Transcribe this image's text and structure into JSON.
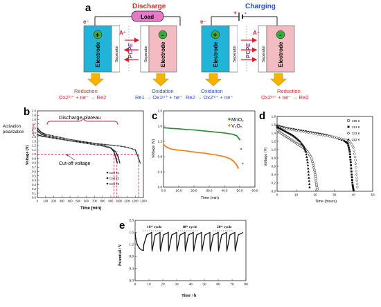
{
  "panels": {
    "a": {
      "letter": "a",
      "discharge": {
        "title": "Discharge",
        "load_label": "Load",
        "electron_label": "e⁻",
        "ion_label": "A⁺",
        "electrode_label": "Electrode",
        "separator_label": "Separator",
        "membrane_label": "PCPE",
        "plus_sign": "+",
        "minus_sign": "-",
        "left_reaction_title": "Reduction",
        "left_reaction": "Ox2ᵐ⁺ + ne⁻ → Re2",
        "right_reaction_title": "Oxidation",
        "right_reaction": "Re1 → Ox1ᵐ⁺ + ne⁻"
      },
      "charging": {
        "title": "Charging",
        "electron_label": "e⁻",
        "ion_label": "A⁺",
        "electrode_label": "Electrode",
        "separator_label": "Separator",
        "membrane_label": "PCPE",
        "plus_sign": "+",
        "minus_sign": "-",
        "battery_plus": "+",
        "battery_minus": "-",
        "left_reaction_title": "Oxidation",
        "left_reaction": "Re2 → Ox2ᵐ⁺ + ne⁻",
        "right_reaction_title": "Reduction",
        "right_reaction": "Ox2ᵐ⁺ + ne⁻ → Re2"
      },
      "colors": {
        "electrode_left": "#22b4d8",
        "electrode_right": "#f2bcc2",
        "discharge_title": "#e02828",
        "charging_title": "#2a52c8",
        "reduction": "#e02828",
        "oxidation": "#2a52c8",
        "arrow_fill": "#f2b400",
        "sign_circle": "#3aa83a"
      }
    },
    "b": {
      "letter": "b",
      "ylabel": "Voltage (V)",
      "xlabel": "Time (min)",
      "annotation_activation": "Activation\npolarization",
      "annotation_plateau": "Discharge plateau",
      "annotation_cutoff": "Cut-off voltage",
      "legend": [
        "Cell #1",
        "Cell #2",
        "Cell #3"
      ],
      "yticks": [
        "0.0",
        "0.1",
        "0.2",
        "0.3",
        "0.4",
        "0.5",
        "0.6",
        "0.7",
        "0.8",
        "0.9",
        "1.0",
        "1.1",
        "1.2",
        "1.3",
        "1.4",
        "1.5",
        "1.6",
        "1.7",
        "1.8",
        "1.9",
        "2.0"
      ],
      "xticks": [
        "0",
        "100",
        "200",
        "300",
        "400",
        "500",
        "600",
        "700",
        "800",
        "900",
        "1000",
        "1100",
        "1200",
        "1300"
      ]
    },
    "c": {
      "letter": "c",
      "ylabel": "Voltage (V)",
      "xlabel": "Time (min)",
      "yticks": [
        "0.0",
        "0.4",
        "0.8",
        "1.2",
        "1.6",
        "2.0"
      ],
      "xticks": [
        "0.0",
        "10.0",
        "20.0",
        "30.0",
        "40.0",
        "50.0",
        "60.0"
      ],
      "legend": [
        "MnO₂",
        "V₂O₅"
      ],
      "colors": {
        "mno2": "#2e8b3a",
        "v2o5": "#f07f1a"
      }
    },
    "d": {
      "letter": "d",
      "ylabel": "Voltage (V)",
      "xlabel": "Time (hours)",
      "yticks": [
        "0.0",
        "0.2",
        "0.4",
        "0.6",
        "0.8",
        "1.0",
        "1.2",
        "1.4",
        "1.6",
        "1.8"
      ],
      "xticks": [
        "0",
        "10",
        "20",
        "30",
        "40",
        "50"
      ],
      "legend": [
        "298 K",
        "313 K",
        "333 K",
        "353 K"
      ]
    },
    "e": {
      "letter": "e",
      "ylabel": "Potential / V",
      "xlabel": "Time / h",
      "yticks": [
        "0.0",
        "0.4",
        "0.8",
        "1.2",
        "1.6",
        "2.0"
      ],
      "xticks": [
        "0",
        "10",
        "20",
        "30",
        "40",
        "50",
        "60",
        "70",
        "80"
      ],
      "cycle_labels": [
        "16ᵗʰ cycle",
        "18ᵗʰ cycle",
        "20ᵗʰ cycle"
      ]
    }
  },
  "chart_data": [
    {
      "panel": "b",
      "type": "scatter",
      "xlabel": "Time (min)",
      "ylabel": "Voltage (V)",
      "xlim": [
        0,
        1300
      ],
      "ylim": [
        0.0,
        2.0
      ],
      "series": [
        {
          "name": "Cell #1",
          "x": [
            0,
            50,
            100,
            200,
            300,
            400,
            500,
            600,
            700,
            800,
            900,
            940,
            960,
            980
          ],
          "y": [
            1.6,
            1.5,
            1.46,
            1.42,
            1.38,
            1.34,
            1.31,
            1.28,
            1.25,
            1.21,
            1.15,
            1.05,
            0.92,
            0.8
          ]
        },
        {
          "name": "Cell #2",
          "x": [
            0,
            50,
            100,
            200,
            300,
            400,
            500,
            600,
            700,
            800,
            900,
            960,
            990,
            1010
          ],
          "y": [
            1.55,
            1.46,
            1.43,
            1.39,
            1.35,
            1.31,
            1.28,
            1.25,
            1.22,
            1.19,
            1.14,
            1.06,
            0.94,
            0.8
          ]
        },
        {
          "name": "Cell #3",
          "x": [
            0,
            50,
            100,
            200,
            300,
            400,
            500,
            600,
            700,
            800,
            900,
            1000,
            1100,
            1200,
            1230,
            1260
          ],
          "y": [
            1.45,
            1.42,
            1.4,
            1.37,
            1.34,
            1.31,
            1.29,
            1.27,
            1.25,
            1.23,
            1.21,
            1.19,
            1.16,
            1.1,
            0.96,
            0.8
          ]
        }
      ],
      "reference_lines": {
        "cutoff_voltage": 1.0
      }
    },
    {
      "panel": "c",
      "type": "line",
      "xlabel": "Time (min)",
      "ylabel": "Voltage (V)",
      "xlim": [
        0,
        60
      ],
      "ylim": [
        0.0,
        2.0
      ],
      "series": [
        {
          "name": "MnO₂",
          "x": [
            0,
            5,
            10,
            15,
            20,
            25,
            30,
            35,
            40,
            45,
            48,
            50,
            51,
            52
          ],
          "y": [
            1.56,
            1.54,
            1.53,
            1.51,
            1.5,
            1.48,
            1.46,
            1.44,
            1.42,
            1.39,
            1.35,
            1.25,
            1.0,
            0.62
          ]
        },
        {
          "name": "V₂O₅",
          "x": [
            0,
            2,
            5,
            10,
            15,
            20,
            25,
            30,
            35,
            40,
            44,
            46,
            48,
            49
          ],
          "y": [
            1.12,
            1.05,
            1.0,
            0.97,
            0.95,
            0.92,
            0.9,
            0.87,
            0.84,
            0.8,
            0.74,
            0.68,
            0.58,
            0.5
          ]
        }
      ]
    },
    {
      "panel": "d",
      "type": "scatter",
      "xlabel": "Time (hours)",
      "ylabel": "Voltage (V)",
      "xlim": [
        0,
        50
      ],
      "ylim": [
        0.0,
        1.8
      ],
      "series": [
        {
          "name": "298 K",
          "x": [
            0,
            2,
            4,
            6,
            8,
            10,
            12,
            14,
            16,
            18,
            19,
            20,
            20.5,
            21
          ],
          "y": [
            1.48,
            1.4,
            1.34,
            1.28,
            1.22,
            1.16,
            1.1,
            1.04,
            0.95,
            0.8,
            0.62,
            0.4,
            0.2,
            0.05
          ]
        },
        {
          "name": "313 K",
          "x": [
            0,
            5,
            10,
            15,
            20,
            25,
            30,
            35,
            37,
            38,
            38.5,
            39,
            39.5,
            40
          ],
          "y": [
            1.58,
            1.52,
            1.48,
            1.44,
            1.4,
            1.36,
            1.3,
            1.22,
            1.15,
            0.95,
            0.7,
            0.4,
            0.15,
            0.02
          ]
        },
        {
          "name": "333 K",
          "x": [
            0,
            5,
            10,
            15,
            20,
            25,
            30,
            35,
            38,
            40,
            41,
            41.5,
            42
          ],
          "y": [
            1.55,
            1.5,
            1.46,
            1.42,
            1.38,
            1.34,
            1.3,
            1.25,
            1.2,
            1.05,
            0.75,
            0.4,
            0.1
          ]
        },
        {
          "name": "353 K",
          "x": [
            0,
            2,
            4,
            6,
            8,
            10,
            12,
            14,
            15,
            16,
            16.5,
            17
          ],
          "y": [
            1.55,
            1.5,
            1.45,
            1.4,
            1.35,
            1.28,
            1.2,
            1.08,
            0.95,
            0.7,
            0.4,
            0.1
          ]
        }
      ]
    },
    {
      "panel": "e",
      "type": "line",
      "xlabel": "Time / h",
      "ylabel": "Potential / V",
      "xlim": [
        0,
        80
      ],
      "ylim": [
        0.0,
        2.0
      ],
      "series": [
        {
          "name": "",
          "x": [
            0,
            6,
            6.3,
            8.5,
            12,
            12.3,
            14.5,
            18,
            18.3,
            20.5,
            24,
            24.3,
            26.5,
            30,
            30.3,
            32.5,
            36,
            36.3,
            38.5,
            42,
            42.3,
            44.5,
            48,
            48.3,
            50.5,
            54,
            54.3,
            56.5,
            60,
            60.3,
            62.5,
            66,
            66.3,
            68.5,
            72,
            72.3,
            74.5,
            78
          ],
          "y": [
            1.6,
            1.0,
            1.2,
            1.52,
            1.6,
            1.0,
            1.52,
            1.6,
            1.0,
            1.52,
            1.6,
            1.0,
            1.52,
            1.6,
            1.0,
            1.52,
            1.6,
            1.0,
            1.52,
            1.6,
            1.0,
            1.52,
            1.6,
            1.0,
            1.52,
            1.6,
            1.0,
            1.52,
            1.6,
            1.0,
            1.52,
            1.6,
            1.0,
            1.52,
            1.6,
            1.0,
            1.52,
            1.6
          ]
        }
      ]
    }
  ]
}
